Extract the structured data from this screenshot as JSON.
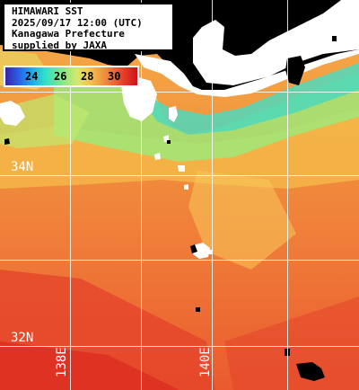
{
  "title": {
    "line1": "HIMAWARI SST",
    "line2": "2025/09/17 12:00 (UTC)",
    "line3": "Kanagawa Prefecture",
    "line4": "supplied by JAXA"
  },
  "legend": {
    "ticks": [
      "24",
      "26",
      "28",
      "30"
    ],
    "colors": [
      "#3b23a8",
      "#1ca8ee",
      "#7ee88a",
      "#f4c24a",
      "#f08a3e",
      "#d1101a"
    ]
  },
  "grid": {
    "lat_labels": [
      "34N",
      "32N"
    ],
    "lon_labels": [
      "138E",
      "140E"
    ]
  },
  "colors": {
    "land": "#ffffff",
    "nodata": "#000000",
    "gridline": "#ffffff",
    "warm_sea": "#f08a3e",
    "cool_sea": "#7ee88a"
  }
}
